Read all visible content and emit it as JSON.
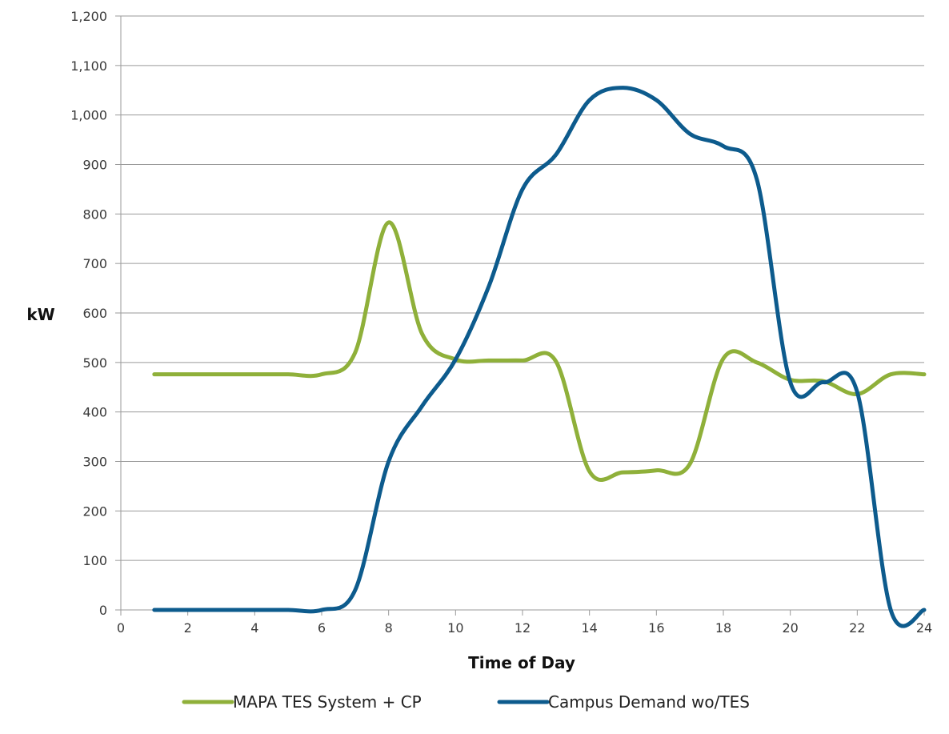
{
  "chart_data": {
    "type": "line",
    "title": "",
    "xlabel": "Time of Day",
    "ylabel": "kW",
    "xlim": [
      0,
      24
    ],
    "ylim": [
      0,
      1200
    ],
    "x_ticks": [
      "0",
      "2",
      "4",
      "6",
      "8",
      "10",
      "12",
      "14",
      "16",
      "18",
      "20",
      "22",
      "24"
    ],
    "y_ticks": [
      "0",
      "100",
      "200",
      "300",
      "400",
      "500",
      "600",
      "700",
      "800",
      "900",
      "1,000",
      "1,100",
      "1,200"
    ],
    "grid": "horizontal",
    "legend": "bottom",
    "series": [
      {
        "name": "MAPA TES System + CP",
        "color": "#8fb03a",
        "x": [
          1,
          2,
          3,
          4,
          5,
          6,
          7,
          8,
          9,
          10,
          11,
          12,
          13,
          14,
          15,
          16,
          17,
          18,
          19,
          20,
          21,
          22,
          23,
          24
        ],
        "y": [
          476,
          476,
          476,
          476,
          476,
          476,
          520,
          783,
          558,
          506,
          504,
          504,
          502,
          280,
          278,
          282,
          295,
          508,
          500,
          465,
          462,
          436,
          476,
          476
        ]
      },
      {
        "name": "Campus Demand wo/TES",
        "color": "#0d5b8d",
        "x": [
          1,
          2,
          3,
          4,
          5,
          6,
          7,
          8,
          9,
          10,
          11,
          12,
          13,
          14,
          15,
          16,
          17,
          18,
          19,
          20,
          21,
          22,
          23,
          24
        ],
        "y": [
          0,
          0,
          0,
          0,
          0,
          0,
          40,
          300,
          412,
          506,
          655,
          850,
          920,
          1030,
          1055,
          1030,
          962,
          937,
          870,
          460,
          460,
          440,
          0,
          0
        ]
      }
    ]
  }
}
